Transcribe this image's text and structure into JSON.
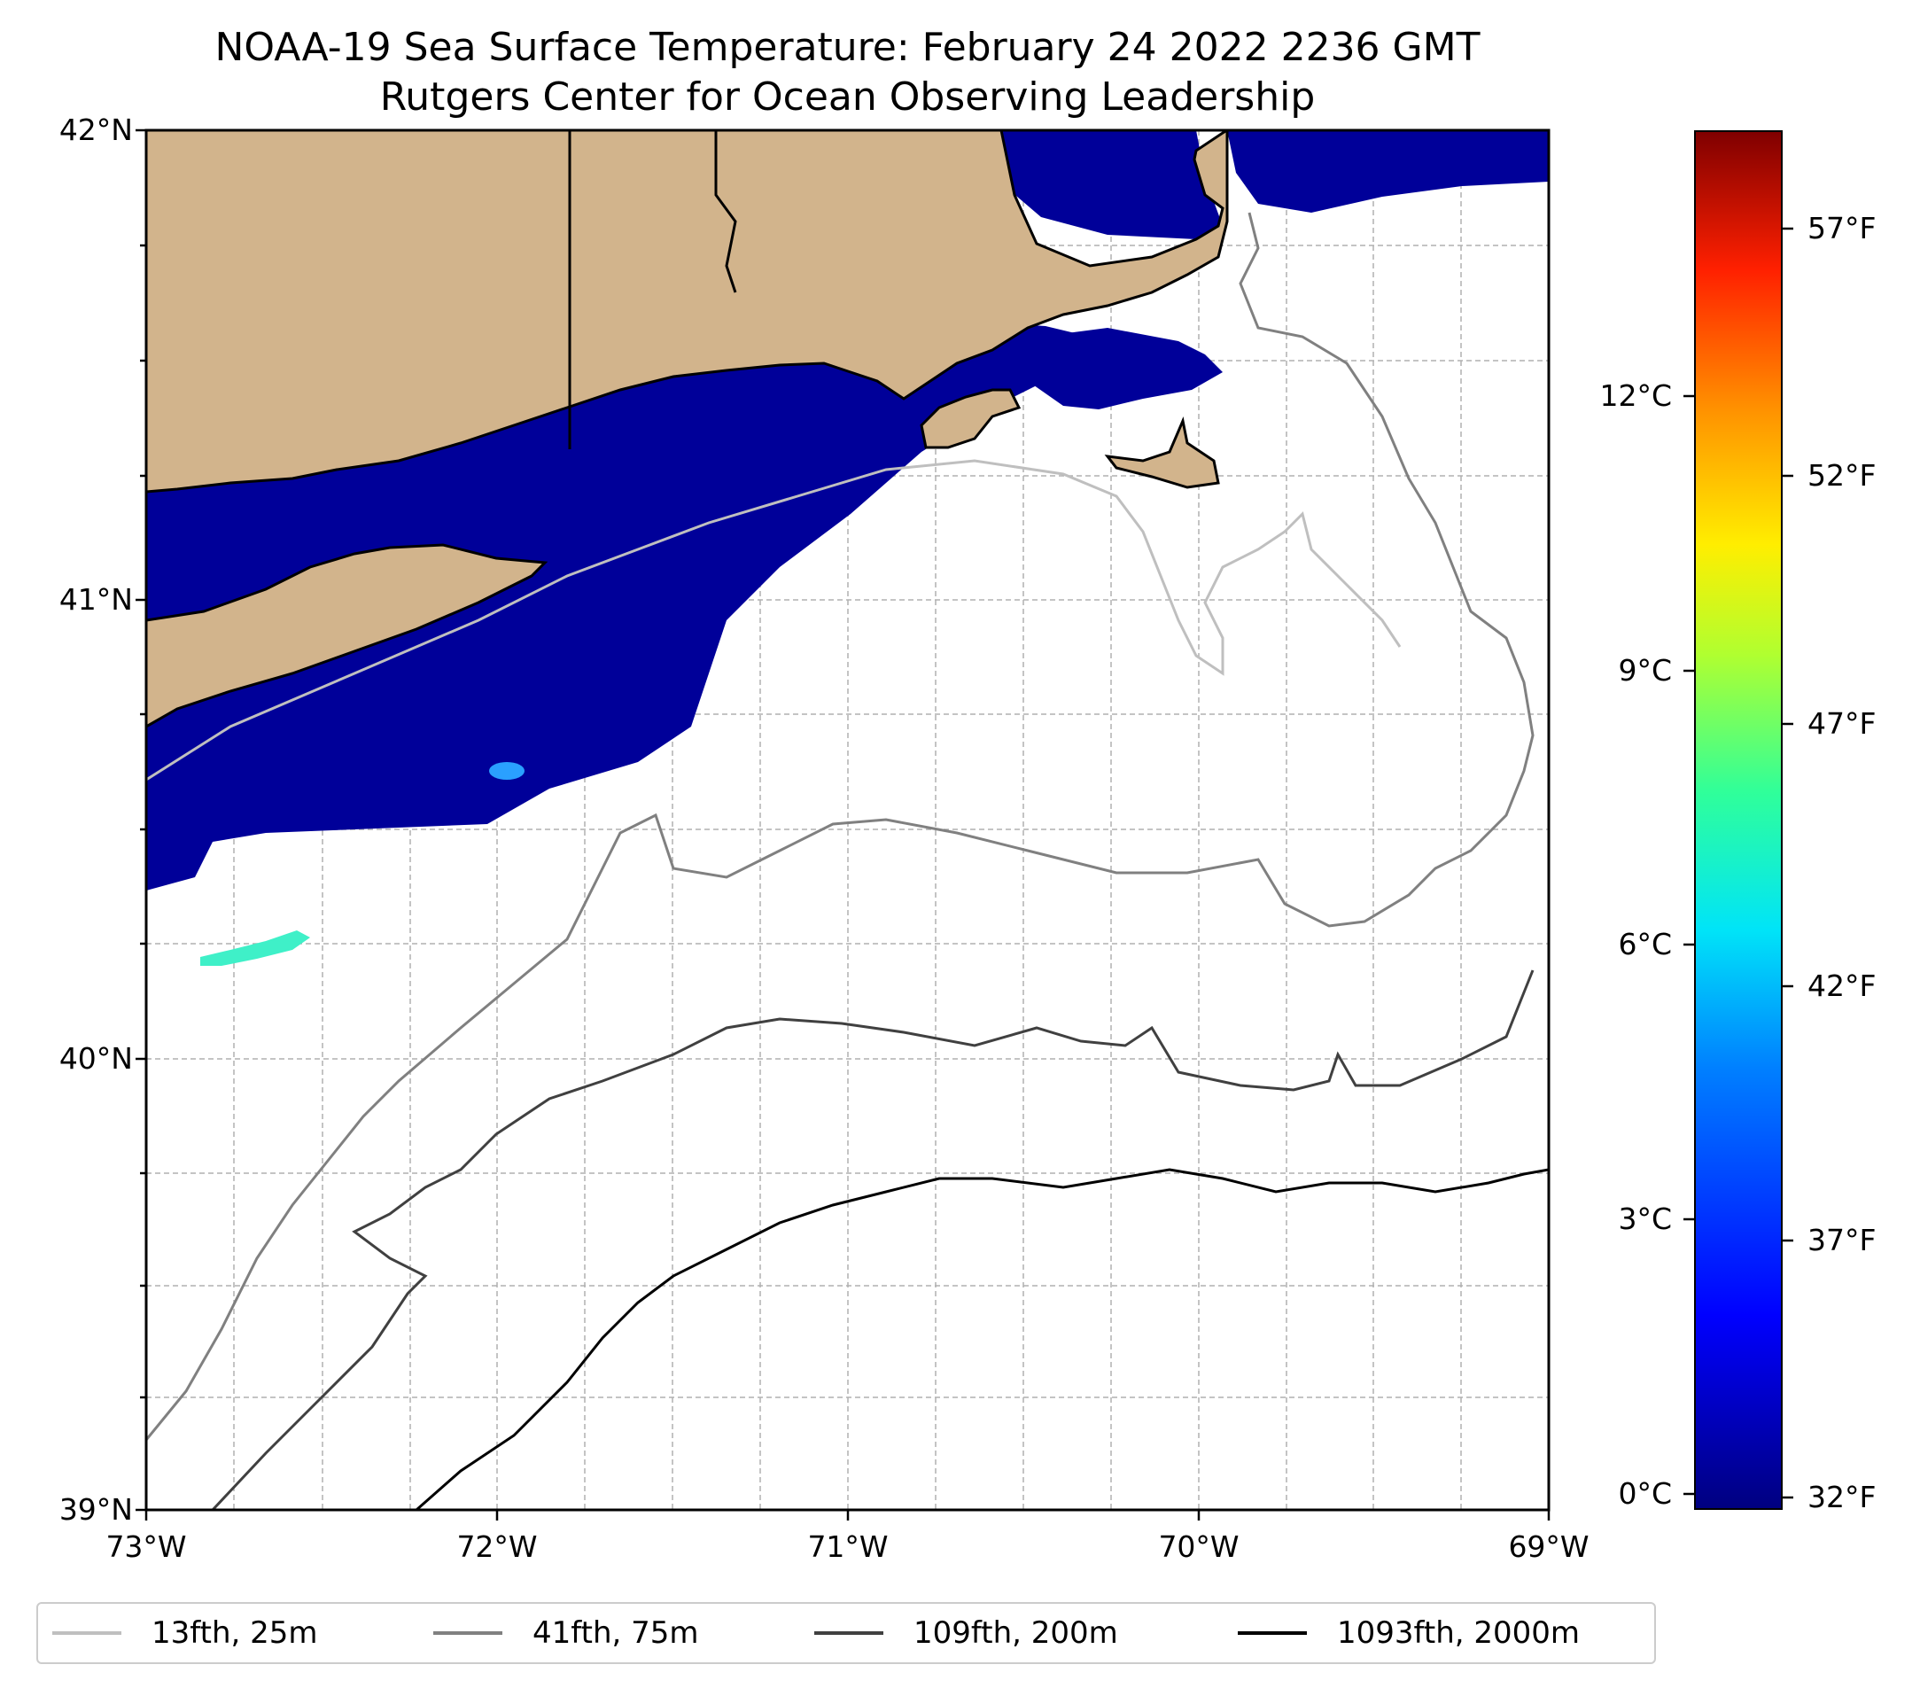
{
  "title": {
    "line1": "NOAA-19 Sea Surface Temperature: February 24 2022 2236 GMT",
    "line2": "Rutgers Center for Ocean Observing Leadership"
  },
  "map": {
    "extent": {
      "lon_min": -73,
      "lon_max": -69,
      "lat_min": 39,
      "lat_max": 42
    },
    "latitude_ticks": [
      "42°N",
      "41°N",
      "40°N",
      "39°N"
    ],
    "longitude_ticks": [
      "73°W",
      "72°W",
      "71°W",
      "70°W",
      "69°W"
    ],
    "gridlines": "dashed",
    "colors": {
      "land": "#d2b48c",
      "sst_cold": "#000099",
      "contour_25m": "#bfbfbf",
      "contour_75m": "#808080",
      "contour_200m": "#404040",
      "contour_2000m": "#000000"
    }
  },
  "colorbar": {
    "colormap": "jet",
    "celsius_ticks": [
      "12°C",
      "9°C",
      "6°C",
      "3°C",
      "0°C"
    ],
    "fahrenheit_ticks": [
      "57°F",
      "52°F",
      "47°F",
      "42°F",
      "37°F",
      "32°F"
    ]
  },
  "legend": {
    "items": [
      {
        "label": "13fth, 25m",
        "color": "#bfbfbf"
      },
      {
        "label": "41fth, 75m",
        "color": "#808080"
      },
      {
        "label": "109fth, 200m",
        "color": "#404040"
      },
      {
        "label": "1093fth, 2000m",
        "color": "#000000"
      }
    ]
  }
}
